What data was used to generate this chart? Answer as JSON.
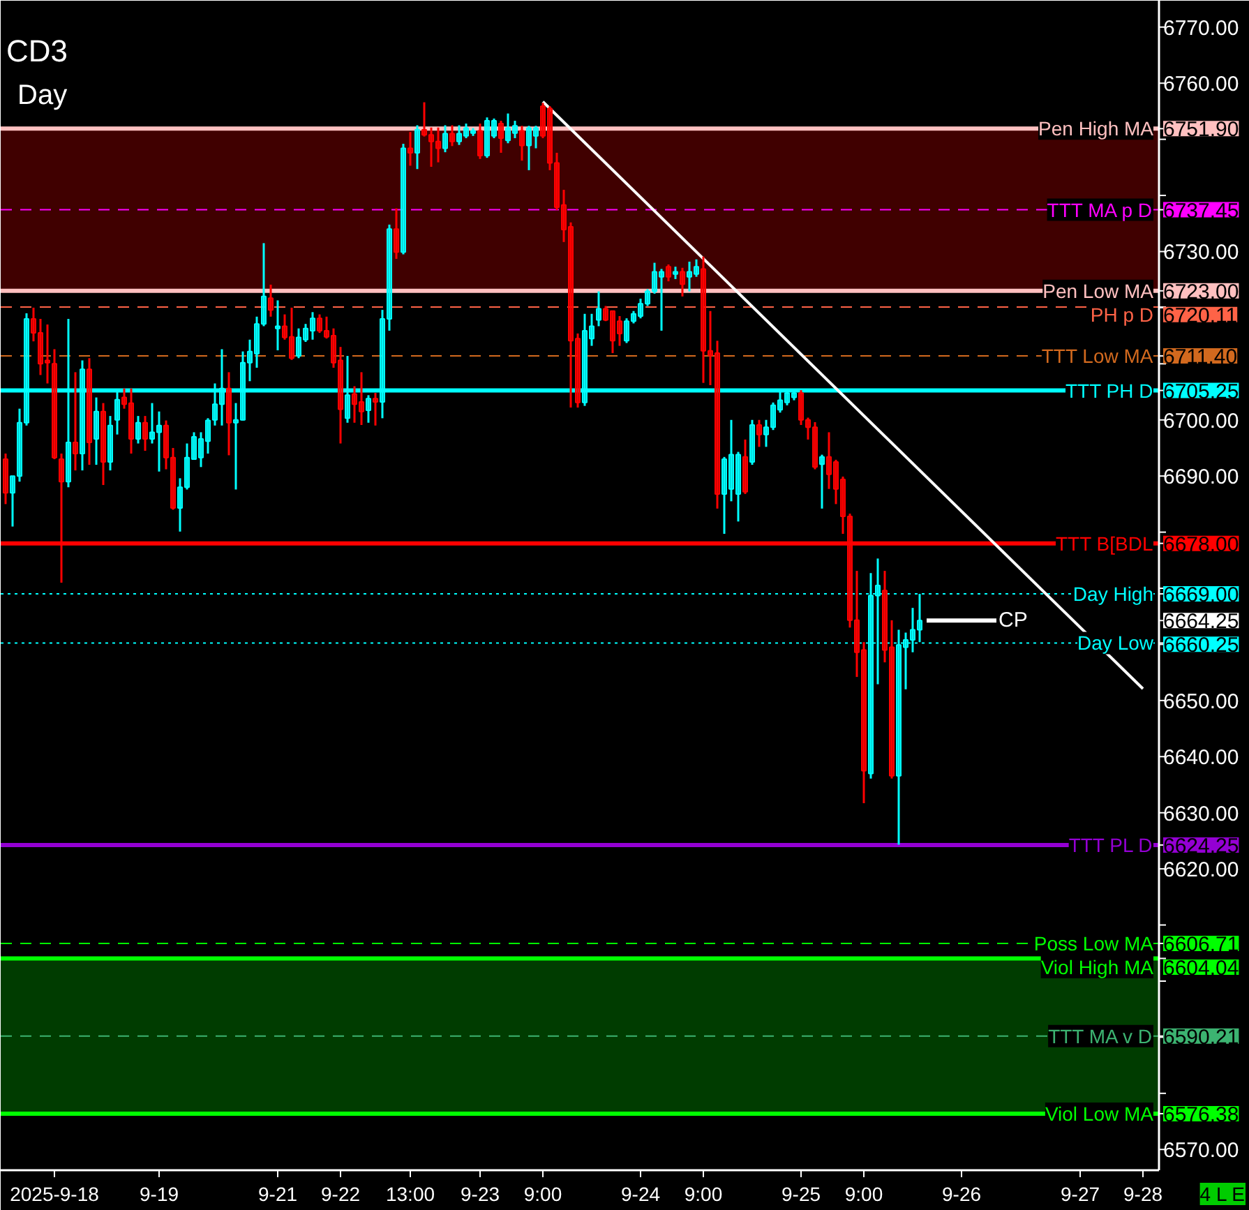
{
  "chart_data": {
    "type": "candlestick",
    "title": "CD3",
    "subtitle": "Day",
    "categories": [
      null,
      null,
      null,
      null,
      null,
      null,
      null,
      "2025-9-18",
      null,
      null,
      null,
      null,
      null,
      null,
      null,
      null,
      null,
      null,
      null,
      null,
      null,
      null,
      "9-19",
      null,
      null,
      null,
      null,
      null,
      null,
      null,
      null,
      null,
      null,
      null,
      null,
      null,
      null,
      null,
      null,
      "9-21",
      null,
      null,
      null,
      null,
      null,
      null,
      null,
      null,
      "9-22",
      null,
      null,
      null,
      null,
      null,
      null,
      null,
      null,
      null,
      "13:00",
      null,
      null,
      null,
      null,
      null,
      null,
      null,
      null,
      null,
      "9-23",
      null,
      null,
      null,
      null,
      null,
      null,
      null,
      null,
      "9:00",
      null,
      null,
      null,
      null,
      null,
      null,
      null,
      null,
      null,
      null,
      null,
      null,
      null,
      "9-24",
      null,
      null,
      null,
      null,
      null,
      null,
      null,
      null,
      "9:00",
      null,
      null,
      null,
      null,
      null,
      null,
      null,
      null,
      null,
      null,
      null,
      null,
      null,
      "9-25",
      null,
      null,
      null,
      null,
      null,
      null,
      null,
      null,
      "9:00",
      null,
      null,
      null,
      null,
      null,
      null,
      null,
      null,
      null,
      null,
      null,
      null,
      null,
      "9-26",
      null,
      null,
      null,
      null,
      null,
      null,
      null,
      null,
      null,
      null,
      null,
      null,
      null,
      null,
      null,
      null,
      "9-27",
      null,
      null,
      null,
      null,
      null,
      null,
      null,
      null,
      "9-28",
      null,
      null
    ],
    "ohlc": [
      [
        6693,
        6694,
        6685,
        6687
      ],
      [
        6687,
        6690,
        6681,
        6690
      ],
      [
        6690,
        6702,
        6689,
        6699.5
      ],
      [
        6699.5,
        6719,
        6699,
        6718
      ],
      [
        6718,
        6720,
        6714,
        6715.5
      ],
      [
        6715.5,
        6718,
        6708,
        6710
      ],
      [
        6710.6,
        6717,
        6706.5,
        6710.2
      ],
      [
        6710,
        6712.6,
        6693,
        6693.3
      ],
      [
        6693,
        6694,
        6671,
        6689
      ],
      [
        6689,
        6718,
        6688,
        6696
      ],
      [
        6696,
        6708.5,
        6691,
        6694
      ],
      [
        6694,
        6710.6,
        6691,
        6709
      ],
      [
        6709,
        6711,
        6692,
        6696
      ],
      [
        6696.6,
        6704,
        6692,
        6701.5
      ],
      [
        6701.5,
        6703,
        6688.4,
        6692.5
      ],
      [
        6692.5,
        6700.7,
        6691,
        6699
      ],
      [
        6700,
        6705,
        6697.4,
        6703.6
      ],
      [
        6704,
        6705.6,
        6702,
        6702.8
      ],
      [
        6703,
        6705.6,
        6694,
        6696.6
      ],
      [
        6696.6,
        6700.7,
        6695.8,
        6699.5
      ],
      [
        6699.5,
        6700.7,
        6694.5,
        6696.6
      ],
      [
        6696.6,
        6703,
        6695.8,
        6697.8
      ],
      [
        6697.8,
        6701.5,
        6690.8,
        6699
      ],
      [
        6699,
        6699.9,
        6691.2,
        6693.3
      ],
      [
        6693.3,
        6695,
        6684,
        6684.3
      ],
      [
        6684.3,
        6689.6,
        6680.1,
        6688
      ],
      [
        6688,
        6695.8,
        6687.6,
        6693.3
      ],
      [
        6693,
        6697.8,
        6692.9,
        6697
      ],
      [
        6693.3,
        6697.8,
        6691.6,
        6696.6
      ],
      [
        6696.2,
        6700.3,
        6694,
        6699.9
      ],
      [
        6700,
        6706.5,
        6699,
        6702.8
      ],
      [
        6702.8,
        6712.6,
        6699,
        6705.6
      ],
      [
        6705.6,
        6708.5,
        6693.7,
        6699.5
      ],
      [
        6699.5,
        6703,
        6687.6,
        6700
      ],
      [
        6700,
        6712.2,
        6699.9,
        6710.2
      ],
      [
        6710.2,
        6714.3,
        6706.9,
        6712.2
      ],
      [
        6711.8,
        6718.4,
        6709.3,
        6717.1
      ],
      [
        6717.1,
        6731.5,
        6716.7,
        6722
      ],
      [
        6721.7,
        6724.1,
        6718.4,
        6719.6
      ],
      [
        6716.3,
        6721.3,
        6712.4,
        6716.7
      ],
      [
        6716.7,
        6718.8,
        6714.3,
        6714.7
      ],
      [
        6714.8,
        6720,
        6710.7,
        6711
      ],
      [
        6711.4,
        6716.3,
        6711,
        6714.7
      ],
      [
        6714.3,
        6717.1,
        6713.9,
        6716.3
      ],
      [
        6715.9,
        6719.2,
        6714.3,
        6718.1
      ],
      [
        6718.1,
        6718.8,
        6715.5,
        6715.9
      ],
      [
        6715.9,
        6718.4,
        6714.5,
        6714.8
      ],
      [
        6715,
        6716.3,
        6709.3,
        6710.2
      ],
      [
        6710.6,
        6713,
        6695.8,
        6701.9
      ],
      [
        6700.3,
        6711.4,
        6699.5,
        6704.4
      ],
      [
        6704.6,
        6706,
        6699.5,
        6702.8
      ],
      [
        6703.2,
        6708.5,
        6699.1,
        6701.5
      ],
      [
        6701.7,
        6704.4,
        6699.5,
        6703.8
      ],
      [
        6703.8,
        6704.8,
        6699,
        6703.2
      ],
      [
        6703.2,
        6719.6,
        6700.3,
        6718
      ],
      [
        6718,
        6734.8,
        6715.9,
        6734
      ],
      [
        6734,
        6737.7,
        6728.7,
        6729.9
      ],
      [
        6729.9,
        6749.2,
        6729.5,
        6748.4
      ],
      [
        6748.4,
        6751.3,
        6745.3,
        6747.6
      ],
      [
        6747.6,
        6752.5,
        6744.7,
        6751.7
      ],
      [
        6751.7,
        6756.6,
        6750.5,
        6750.8
      ],
      [
        6750.8,
        6752.1,
        6745.1,
        6749.6
      ],
      [
        6749.6,
        6752.1,
        6745.9,
        6748.4
      ],
      [
        6748.4,
        6752.5,
        6747.7,
        6751
      ],
      [
        6751,
        6752.5,
        6748.8,
        6749.6
      ],
      [
        6749.6,
        6752.5,
        6749,
        6751
      ],
      [
        6750.6,
        6752.8,
        6750.2,
        6752
      ],
      [
        6751.1,
        6752,
        6750.6,
        6751.5
      ],
      [
        6751.5,
        6752.8,
        6746.5,
        6747.1
      ],
      [
        6747.1,
        6753.9,
        6746.7,
        6753.3
      ],
      [
        6750.6,
        6753.7,
        6750.2,
        6753.3
      ],
      [
        6752.8,
        6753.3,
        6747.6,
        6750.2
      ],
      [
        6749.8,
        6754.6,
        6749.3,
        6752
      ],
      [
        6751.1,
        6753.3,
        6750.2,
        6752.4
      ],
      [
        6751.5,
        6752.4,
        6746.2,
        6748.9
      ],
      [
        6748.9,
        6752.4,
        6744.5,
        6752
      ],
      [
        6750.6,
        6752.4,
        6748.4,
        6752
      ],
      [
        6755.9,
        6756.5,
        6750.2,
        6750.6
      ],
      [
        6755.5,
        6755.9,
        6744.5,
        6745.8
      ],
      [
        6745.8,
        6747.6,
        6737.4,
        6737.9
      ],
      [
        6738.3,
        6741,
        6731.7,
        6733.9
      ],
      [
        6734.4,
        6735.2,
        6702.2,
        6714.1
      ],
      [
        6714.5,
        6715.4,
        6702.2,
        6703.1
      ],
      [
        6703.1,
        6718.9,
        6702.5,
        6715.9
      ],
      [
        6714.5,
        6718.9,
        6713.2,
        6716.7
      ],
      [
        6717.8,
        6722.9,
        6716.7,
        6719.8
      ],
      [
        6719.8,
        6720.3,
        6717.6,
        6717.8
      ],
      [
        6719.4,
        6719.4,
        6711.9,
        6714.1
      ],
      [
        6717.6,
        6718.5,
        6713.2,
        6715.4
      ],
      [
        6714.1,
        6718.1,
        6713.7,
        6717.6
      ],
      [
        6717.6,
        6719.4,
        6717.2,
        6718.9
      ],
      [
        6718.5,
        6721.6,
        6718.1,
        6720.7
      ],
      [
        6720.7,
        6723.3,
        6720.3,
        6722.9
      ],
      [
        6722.9,
        6728,
        6722.5,
        6726.4
      ],
      [
        6725.5,
        6726.9,
        6715.9,
        6726.4
      ],
      [
        6727.3,
        6727.7,
        6724.7,
        6725.5
      ],
      [
        6726,
        6727.3,
        6725.1,
        6726.4
      ],
      [
        6726.4,
        6727.1,
        6722,
        6724.2
      ],
      [
        6725.5,
        6728.2,
        6722.9,
        6726.4
      ],
      [
        6726,
        6728.6,
        6725.5,
        6727.3
      ],
      [
        6726.9,
        6729.1,
        6706.6,
        6712.3
      ],
      [
        6712.3,
        6719.4,
        6706.2,
        6711.5
      ],
      [
        6711.9,
        6714.1,
        6684.2,
        6686.8
      ],
      [
        6686.8,
        6693.4,
        6679.7,
        6693
      ],
      [
        6687.7,
        6700,
        6685.5,
        6693.8
      ],
      [
        6686.8,
        6694.3,
        6681.9,
        6693.8
      ],
      [
        6693.4,
        6696.5,
        6686.8,
        6687.2
      ],
      [
        6692.5,
        6700,
        6692,
        6699.1
      ],
      [
        6699.1,
        6700,
        6695.2,
        6697.4
      ],
      [
        6697.4,
        6700,
        6695.2,
        6698.7
      ],
      [
        6698.7,
        6703.1,
        6698.2,
        6702.6
      ],
      [
        6701.8,
        6705.3,
        6701.3,
        6703.5
      ],
      [
        6703.1,
        6705.3,
        6702.6,
        6704.8
      ],
      [
        6704,
        6705.3,
        6703.5,
        6704.8
      ],
      [
        6704.8,
        6705.3,
        6699.1,
        6700
      ],
      [
        6700,
        6700.4,
        6696.5,
        6698.7
      ],
      [
        6698.7,
        6699.6,
        6691.2,
        6691.6
      ],
      [
        6692.1,
        6693.8,
        6684.2,
        6693.4
      ],
      [
        6693.4,
        6697.8,
        6687.7,
        6690.3
      ],
      [
        6692.5,
        6692.9,
        6685,
        6687.7
      ],
      [
        6689.4,
        6689.9,
        6679.7,
        6682.8
      ],
      [
        6682.8,
        6683.3,
        6663,
        6664.3
      ],
      [
        6664.3,
        6673.1,
        6654.2,
        6658.6
      ],
      [
        6659,
        6660.4,
        6631.7,
        6637.5
      ],
      [
        6637,
        6672.7,
        6636.1,
        6668.7
      ],
      [
        6668.7,
        6675.3,
        6652.9,
        6670.5
      ],
      [
        6669.6,
        6673.1,
        6656.8,
        6659
      ],
      [
        6659.5,
        6664.3,
        6636.1,
        6636.6
      ],
      [
        6636.6,
        6662.6,
        6624.3,
        6659.9
      ],
      [
        6659.5,
        6662.1,
        6652,
        6660.8
      ],
      [
        6660.8,
        6666.5,
        6658.6,
        6662.6
      ],
      [
        6662.6,
        6669,
        6660.4,
        6664.25
      ],
      null,
      null,
      null,
      null,
      null,
      null,
      null,
      null,
      null,
      null,
      null,
      null,
      null,
      null,
      null,
      null,
      null,
      null,
      null,
      null,
      null,
      null,
      null,
      null,
      null,
      null,
      null,
      null,
      null,
      null,
      null,
      null,
      null,
      null
    ],
    "colors": [
      "#ff0000",
      "#00ffff",
      "#00ffff",
      "#00ffff",
      "#ff0000",
      "#ff0000",
      "#ff0000",
      "#ff0000",
      "#ff0000",
      "#00ffff",
      "#ff0000",
      "#00ffff",
      "#ff0000",
      "#00ffff",
      "#ff0000",
      "#00ffff",
      "#00ffff",
      "#ff0000",
      "#ff0000",
      "#00ffff",
      "#ff0000",
      "#00ffff",
      "#00ffff",
      "#ff0000",
      "#ff0000",
      "#00ffff",
      "#00ffff",
      "#00ffff",
      "#00ffff",
      "#00ffff",
      "#00ffff",
      "#00ffff",
      "#ff0000",
      "#00ffff",
      "#00ffff",
      "#00ffff",
      "#00ffff",
      "#00ffff",
      "#ff0000",
      "#00ffff",
      "#ff0000",
      "#ff0000",
      "#00ffff",
      "#00ffff",
      "#00ffff",
      "#ff0000",
      "#ff0000",
      "#ff0000",
      "#ff0000",
      "#00ffff",
      "#ff0000",
      "#ff0000",
      "#00ffff",
      "#ff0000",
      "#00ffff",
      "#00ffff",
      "#ff0000",
      "#00ffff",
      "#ff0000",
      "#00ffff",
      "#ff0000",
      "#ff0000",
      "#ff0000",
      "#00ffff",
      "#ff0000",
      "#00ffff",
      "#00ffff",
      "#00ffff",
      "#ff0000",
      "#00ffff",
      "#00ffff",
      "#ff0000",
      "#00ffff",
      "#00ffff",
      "#ff0000",
      "#00ffff",
      "#00ffff",
      "#ff0000",
      "#ff0000",
      "#ff0000",
      "#ff0000",
      "#ff0000",
      "#ff0000",
      "#00ffff",
      "#00ffff",
      "#00ffff",
      "#ff0000",
      "#ff0000",
      "#ff0000",
      "#00ffff",
      "#00ffff",
      "#00ffff",
      "#00ffff",
      "#00ffff",
      "#00ffff",
      "#ff0000",
      "#00ffff",
      "#ff0000",
      "#00ffff",
      "#00ffff",
      "#ff0000",
      "#ff0000",
      "#ff0000",
      "#00ffff",
      "#00ffff",
      "#00ffff",
      "#ff0000",
      "#00ffff",
      "#ff0000",
      "#00ffff",
      "#00ffff",
      "#00ffff",
      "#00ffff",
      "#00ffff",
      "#ff0000",
      "#ff0000",
      "#ff0000",
      "#00ffff",
      "#ff0000",
      "#ff0000",
      "#ff0000",
      "#ff0000",
      "#ff0000",
      "#ff0000",
      "#00ffff",
      "#00ffff",
      "#ff0000",
      "#ff0000",
      "#00ffff",
      "#00ffff",
      "#00ffff",
      "#00ffff",
      null,
      null,
      null,
      null,
      null,
      null,
      null,
      null,
      null,
      null,
      null,
      null,
      null,
      null,
      null,
      null,
      null,
      null,
      null,
      null,
      null,
      null,
      null,
      null,
      null,
      null,
      null,
      null,
      null,
      null,
      null,
      null,
      null,
      null
    ],
    "series": [
      {
        "type": "line",
        "values": [
          null,
          null,
          null,
          null,
          null,
          null,
          null,
          null,
          null,
          null,
          null,
          null,
          null,
          null,
          null,
          null,
          null,
          null,
          null,
          null,
          null,
          null,
          null,
          null,
          null,
          null,
          null,
          null,
          null,
          null,
          null,
          null,
          null,
          null,
          null,
          null,
          null,
          null,
          null,
          null,
          null,
          null,
          null,
          null,
          null,
          null,
          null,
          null,
          null,
          null,
          null,
          null,
          null,
          null,
          null,
          null,
          null,
          null,
          null,
          null,
          null,
          null,
          null,
          null,
          null,
          null,
          null,
          null,
          null,
          null,
          null,
          null,
          null,
          null,
          null,
          null,
          null,
          6756.7,
          null,
          null,
          null,
          null,
          null,
          null,
          null,
          null,
          null,
          null,
          null,
          null,
          null,
          null,
          null,
          null,
          null,
          null,
          null,
          null,
          null,
          null,
          null,
          null,
          null,
          null,
          null,
          null,
          null,
          null,
          null,
          null,
          null,
          null,
          null,
          null,
          null,
          null,
          null,
          null,
          null,
          null,
          null,
          null,
          null,
          null,
          null,
          null,
          null,
          null,
          null,
          null,
          null,
          null,
          null,
          null,
          null,
          null,
          null,
          null,
          null,
          null,
          null,
          null,
          null,
          null,
          null,
          null,
          null,
          null,
          null,
          null,
          null,
          null,
          null,
          null,
          null,
          null,
          null,
          null,
          null,
          null,
          null,
          null,
          null,
          6652.1,
          null,
          null
        ],
        "color": "#ffffff"
      }
    ],
    "ylim": [
      6566.3,
      6774.7
    ],
    "yticks": [
      {
        "value": 6570,
        "label": "6570.00"
      },
      {
        "value": 6580,
        "label": null
      },
      {
        "value": 6590,
        "label": null
      },
      {
        "value": 6600,
        "label": null
      },
      {
        "value": 6610,
        "label": null
      },
      {
        "value": 6620,
        "label": "6620.00"
      },
      {
        "value": 6630,
        "label": "6630.00"
      },
      {
        "value": 6640,
        "label": "6640.00"
      },
      {
        "value": 6650,
        "label": "6650.00"
      },
      {
        "value": 6660,
        "label": null
      },
      {
        "value": 6670,
        "label": null
      },
      {
        "value": 6680,
        "label": null
      },
      {
        "value": 6690,
        "label": "6690.00"
      },
      {
        "value": 6700,
        "label": "6700.00"
      },
      {
        "value": 6710,
        "label": null
      },
      {
        "value": 6720,
        "label": null
      },
      {
        "value": 6730,
        "label": "6730.00"
      },
      {
        "value": 6740,
        "label": null
      },
      {
        "value": 6750,
        "label": null
      },
      {
        "value": 6760,
        "label": "6760.00"
      },
      {
        "value": 6770,
        "label": "6770.00"
      },
      {
        "value": 6751.9,
        "label": "6751.90"
      },
      {
        "value": 6737.45,
        "label": "6737.45"
      },
      {
        "value": 6723.0,
        "label": "6723.00"
      },
      {
        "value": 6720.11,
        "label": "6720.11"
      },
      {
        "value": 6711.4,
        "label": "6711.40"
      },
      {
        "value": 6705.25,
        "label": "6705.25"
      },
      {
        "value": 6678.0,
        "label": "6678.00"
      },
      {
        "value": 6669.0,
        "label": "6669.00"
      },
      {
        "value": 6664.25,
        "label": "6664.25"
      },
      {
        "value": 6660.25,
        "label": "6660.25"
      },
      {
        "value": 6624.25,
        "label": "6624.25"
      },
      {
        "value": 6606.71,
        "label": "6606.71"
      },
      {
        "value": 6604.04,
        "label": "6604.04"
      },
      {
        "value": 6590.21,
        "label": "6590.21"
      },
      {
        "value": 6576.38,
        "label": "6576.38"
      }
    ],
    "bands": [
      {
        "axis": "y",
        "from": 6723.0,
        "to": 6751.9,
        "color": "#400000"
      },
      {
        "axis": "y",
        "from": 6576.38,
        "to": 6604.04,
        "color": "#003c00"
      }
    ],
    "ref_lines": [
      {
        "axis": "y",
        "value": 6751.9,
        "label": "Pen High MA",
        "color": "#ffc0c0",
        "line_style": "solid"
      },
      {
        "axis": "y",
        "value": 6737.45,
        "label": "TTT MA p D",
        "color": "#ff00ff",
        "line_style": "dashed"
      },
      {
        "axis": "y",
        "value": 6723.0,
        "label": "Pen Low MA",
        "color": "#ffc0c0",
        "line_style": "solid"
      },
      {
        "axis": "y",
        "value": 6720.11,
        "label": "PH p D",
        "color": "#ff6347",
        "line_style": "dashed"
      },
      {
        "axis": "y",
        "value": 6711.4,
        "label": "TTT Low MA",
        "color": "#d2691e",
        "line_style": "dashed"
      },
      {
        "axis": "y",
        "value": 6705.25,
        "label": "TTT PH D",
        "color": "#00ffff",
        "line_style": "solid"
      },
      {
        "axis": "y",
        "value": 6678.0,
        "label": "TTT B[BDL",
        "color": "#ff0000",
        "line_style": "solid"
      },
      {
        "axis": "y",
        "value": 6669.0,
        "label": "Day High",
        "color": "#00ffff",
        "line_style": "dotted"
      },
      {
        "axis": "y",
        "value": 6660.25,
        "label": "Day Low",
        "color": "#00ffff",
        "line_style": "dotted"
      },
      {
        "axis": "y",
        "value": 6624.25,
        "label": "TTT PL D",
        "color": "#9400d3",
        "line_style": "solid"
      },
      {
        "axis": "y",
        "value": 6606.71,
        "label": "Poss Low MA",
        "color": "#00ff00",
        "line_style": "dashed"
      },
      {
        "axis": "y",
        "value": 6604.04,
        "label": "Viol High MA",
        "color": "#00ff00",
        "line_style": "solid"
      },
      {
        "axis": "y",
        "value": 6590.21,
        "label": "TTT MA v D",
        "color": "#3cb371",
        "line_style": "dashed"
      },
      {
        "axis": "y",
        "value": 6576.38,
        "label": "Viol Low MA",
        "color": "#00ff00",
        "line_style": "solid"
      }
    ],
    "annotations": [
      {
        "text": "CP",
        "y": 6664.25
      },
      "4 L E"
    ]
  }
}
